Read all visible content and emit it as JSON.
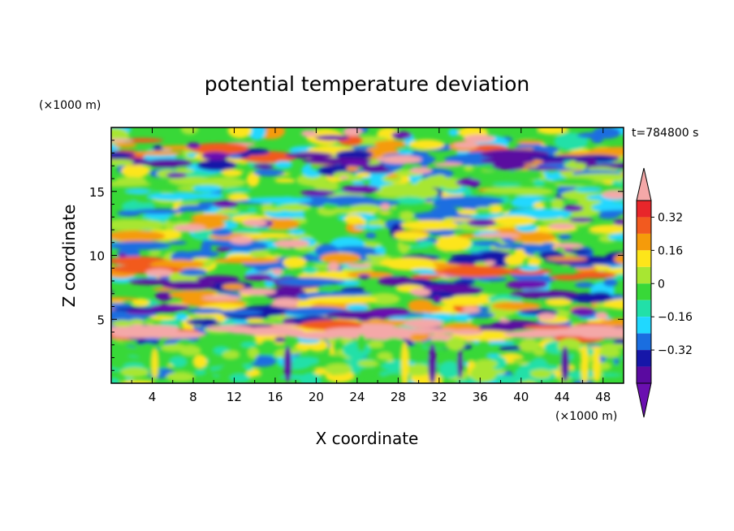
{
  "chart_data": {
    "type": "heatmap",
    "title": "potential temperature deviation",
    "xlabel": "X coordinate",
    "ylabel": "Z coordinate",
    "x_unit": "(×1000 m)",
    "y_unit": "(×1000 m)",
    "time_label": "t=784800 s",
    "xlim": [
      0,
      50
    ],
    "ylim": [
      0,
      20
    ],
    "x_ticks": [
      "4",
      "8",
      "12",
      "16",
      "20",
      "24",
      "28",
      "32",
      "36",
      "40",
      "44",
      "48"
    ],
    "y_ticks": [
      "5",
      "10",
      "15"
    ],
    "colorbar": {
      "levels": [
        -0.4,
        -0.32,
        -0.24,
        -0.16,
        -0.08,
        0,
        0.08,
        0.16,
        0.24,
        0.32,
        0.4
      ],
      "labels": [
        "0.32",
        "0.16",
        "0",
        "−0.16",
        "−0.32"
      ],
      "colors_top_to_bottom": [
        "#f4a8a8",
        "#e8262a",
        "#f25a1f",
        "#f59b0a",
        "#fde51a",
        "#a8e632",
        "#38d838",
        "#22e0a8",
        "#20d8ff",
        "#1a6ee0",
        "#1616a8",
        "#5a0aa0",
        "#6a0fb0"
      ]
    },
    "bands": [
      {
        "z": 18.2,
        "value": 0.4
      },
      {
        "z": 17.2,
        "value": -0.36
      },
      {
        "z": 15.5,
        "value": 0.12
      },
      {
        "z": 13.8,
        "value": -0.2
      },
      {
        "z": 12.2,
        "value": 0.28
      },
      {
        "z": 10.0,
        "value": -0.3
      },
      {
        "z": 9.0,
        "value": 0.36
      },
      {
        "z": 7.4,
        "value": -0.38
      },
      {
        "z": 6.2,
        "value": 0.3
      },
      {
        "z": 5.0,
        "value": -0.34
      },
      {
        "z": 4.0,
        "value": 0.4
      },
      {
        "z": 2.0,
        "value": 0.05
      }
    ]
  }
}
